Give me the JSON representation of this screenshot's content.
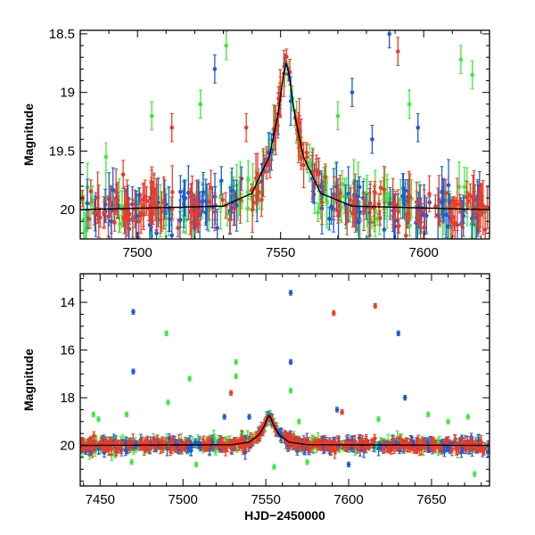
{
  "colors": {
    "blue": "#1f5bd6",
    "green": "#3ee83e",
    "red": "#f03a24",
    "model": "#000000"
  },
  "chart_data": [
    {
      "type": "scatter",
      "panel": "top",
      "xlabel": "",
      "ylabel": "Magnitude",
      "xlim": [
        7480,
        7623
      ],
      "ylim": [
        20.25,
        18.47
      ],
      "y_inverted": true,
      "xticks": [
        7500,
        7550,
        7600
      ],
      "yticks": [
        18.5,
        19,
        19.5,
        20
      ],
      "ytick_labels": [
        "18.5",
        "19",
        "19.5",
        "20"
      ],
      "series_colors": [
        "blue",
        "green",
        "red"
      ],
      "baseline_mag": 19.95,
      "peak": {
        "x": 7552,
        "y": 18.75
      },
      "model_curve": [
        [
          7480,
          20.0
        ],
        [
          7530,
          19.97
        ],
        [
          7540,
          19.86
        ],
        [
          7546,
          19.55
        ],
        [
          7549,
          19.2
        ],
        [
          7551,
          18.85
        ],
        [
          7552,
          18.75
        ],
        [
          7553,
          18.85
        ],
        [
          7555,
          19.2
        ],
        [
          7558,
          19.55
        ],
        [
          7564,
          19.86
        ],
        [
          7575,
          19.97
        ],
        [
          7623,
          20.0
        ]
      ],
      "outliers": [
        {
          "x": 7527,
          "y": 18.8,
          "s": "blue"
        },
        {
          "x": 7531,
          "y": 18.6,
          "s": "green"
        },
        {
          "x": 7522,
          "y": 19.1,
          "s": "green"
        },
        {
          "x": 7505,
          "y": 19.2,
          "s": "green"
        },
        {
          "x": 7575,
          "y": 19.0,
          "s": "blue"
        },
        {
          "x": 7588,
          "y": 18.5,
          "s": "blue"
        },
        {
          "x": 7591,
          "y": 18.65,
          "s": "red"
        },
        {
          "x": 7613,
          "y": 18.72,
          "s": "green"
        },
        {
          "x": 7570,
          "y": 19.2,
          "s": "green"
        },
        {
          "x": 7595,
          "y": 19.1,
          "s": "green"
        },
        {
          "x": 7617,
          "y": 18.85,
          "s": "green"
        },
        {
          "x": 7598,
          "y": 19.3,
          "s": "blue"
        },
        {
          "x": 7538,
          "y": 19.3,
          "s": "red"
        },
        {
          "x": 7512,
          "y": 19.3,
          "s": "red"
        },
        {
          "x": 7582,
          "y": 19.4,
          "s": "blue"
        },
        {
          "x": 7489,
          "y": 19.55,
          "s": "green"
        },
        {
          "x": 7495,
          "y": 19.7,
          "s": "red"
        }
      ]
    },
    {
      "type": "scatter",
      "panel": "bottom",
      "xlabel": "HJD−2450000",
      "ylabel": "Magnitude",
      "xlim": [
        7438,
        7685
      ],
      "ylim": [
        21.7,
        12.8
      ],
      "y_inverted": true,
      "xticks": [
        7450,
        7500,
        7550,
        7600,
        7650
      ],
      "yticks": [
        14,
        16,
        18,
        20
      ],
      "ytick_labels": [
        "14",
        "16",
        "18",
        "20"
      ],
      "series_colors": [
        "blue",
        "green",
        "red"
      ],
      "baseline_mag": 19.95,
      "peak": {
        "x": 7552,
        "y": 18.75
      },
      "model_curve": [
        [
          7438,
          20.0
        ],
        [
          7530,
          19.97
        ],
        [
          7540,
          19.86
        ],
        [
          7546,
          19.55
        ],
        [
          7549,
          19.2
        ],
        [
          7551,
          18.85
        ],
        [
          7552,
          18.75
        ],
        [
          7553,
          18.85
        ],
        [
          7555,
          19.2
        ],
        [
          7558,
          19.55
        ],
        [
          7564,
          19.86
        ],
        [
          7575,
          19.97
        ],
        [
          7685,
          20.0
        ]
      ],
      "outliers": [
        {
          "x": 7470,
          "y": 14.4,
          "s": "blue"
        },
        {
          "x": 7470,
          "y": 16.9,
          "s": "blue"
        },
        {
          "x": 7490,
          "y": 15.3,
          "s": "green"
        },
        {
          "x": 7491,
          "y": 18.2,
          "s": "green"
        },
        {
          "x": 7504,
          "y": 17.2,
          "s": "green"
        },
        {
          "x": 7532,
          "y": 16.5,
          "s": "green"
        },
        {
          "x": 7532,
          "y": 17.1,
          "s": "green"
        },
        {
          "x": 7529,
          "y": 17.8,
          "s": "red"
        },
        {
          "x": 7565,
          "y": 13.6,
          "s": "blue"
        },
        {
          "x": 7565,
          "y": 16.5,
          "s": "blue"
        },
        {
          "x": 7565,
          "y": 17.7,
          "s": "green"
        },
        {
          "x": 7591,
          "y": 14.45,
          "s": "red"
        },
        {
          "x": 7616,
          "y": 14.15,
          "s": "red"
        },
        {
          "x": 7630,
          "y": 15.3,
          "s": "blue"
        },
        {
          "x": 7634,
          "y": 18.0,
          "s": "blue"
        },
        {
          "x": 7593,
          "y": 18.5,
          "s": "blue"
        },
        {
          "x": 7596,
          "y": 18.6,
          "s": "red"
        },
        {
          "x": 7446,
          "y": 18.7,
          "s": "green"
        },
        {
          "x": 7449,
          "y": 18.9,
          "s": "green"
        },
        {
          "x": 7466,
          "y": 18.7,
          "s": "green"
        },
        {
          "x": 7525,
          "y": 18.8,
          "s": "blue"
        },
        {
          "x": 7540,
          "y": 18.8,
          "s": "blue"
        },
        {
          "x": 7648,
          "y": 18.7,
          "s": "green"
        },
        {
          "x": 7672,
          "y": 18.8,
          "s": "green"
        },
        {
          "x": 7570,
          "y": 19.0,
          "s": "green"
        },
        {
          "x": 7618,
          "y": 18.9,
          "s": "green"
        },
        {
          "x": 7660,
          "y": 19.0,
          "s": "green"
        },
        {
          "x": 7676,
          "y": 21.2,
          "s": "green"
        },
        {
          "x": 7508,
          "y": 20.8,
          "s": "green"
        },
        {
          "x": 7555,
          "y": 20.9,
          "s": "green"
        },
        {
          "x": 7575,
          "y": 20.7,
          "s": "green"
        },
        {
          "x": 7469,
          "y": 20.7,
          "s": "green"
        },
        {
          "x": 7600,
          "y": 20.8,
          "s": "blue"
        }
      ]
    }
  ]
}
